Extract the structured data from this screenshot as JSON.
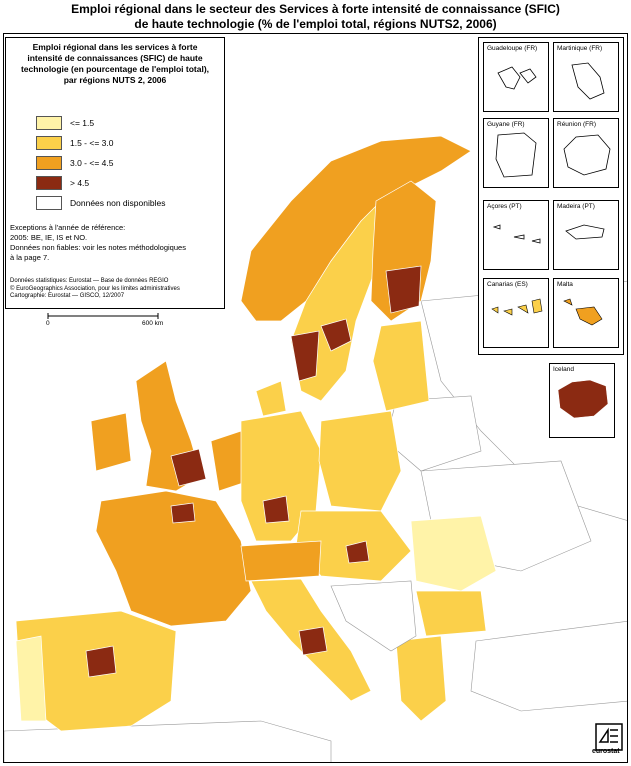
{
  "title": {
    "line1": "Emploi régional dans le secteur des Services à forte intensité de connaissance (SFIC)",
    "line2": "de haute technologie (% de l'emploi total, régions NUTS2, 2006)"
  },
  "legend": {
    "title_line1": "Emploi régional dans les services à forte",
    "title_line2": "intensité de connaissances (SFIC) de haute",
    "title_line3": "technologie (en pourcentage de l'emploi total),",
    "title_line4": "par régions NUTS 2, 2006",
    "classes": [
      {
        "label": "<= 1.5",
        "color": "#fff3a8"
      },
      {
        "label": "1.5 - <= 3.0",
        "color": "#fbd04a"
      },
      {
        "label": "3.0 - <= 4.5",
        "color": "#f0a020"
      },
      {
        "label": "> 4.5",
        "color": "#8b2a12"
      },
      {
        "label": "Données non disponibles",
        "color": "#ffffff"
      }
    ],
    "notes": {
      "line1": "Exceptions à l'année de référence:",
      "line2": "2005: BE, IE, IS et NO.",
      "line3": "Données non fiables: voir les notes méthodologiques",
      "line4": "à la page 7."
    },
    "credits": {
      "line1": "Données statistiques: Eurostat — Base de données REGIO",
      "line2": "© EuroGeographics Association, pour les limites administratives",
      "line3": "Cartographie: Eurostat — GISCO, 12/2007"
    },
    "scale": {
      "start": "0",
      "end": "600 km"
    }
  },
  "insets": [
    {
      "label": "Guadeloupe (FR)",
      "scale_start": "0",
      "scale_end": "25"
    },
    {
      "label": "Martinique (FR)",
      "scale_start": "0",
      "scale_end": "20"
    },
    {
      "label": "Guyane (FR)",
      "scale_start": "0",
      "scale_end": "100"
    },
    {
      "label": "Réunion (FR)",
      "scale_start": "0",
      "scale_end": "20"
    },
    {
      "label": "Açores (PT)",
      "scale_start": "0",
      "scale_end": "100"
    },
    {
      "label": "Madeira (PT)",
      "scale_start": "0",
      "scale_end": "20"
    },
    {
      "label": "Canarias (ES)",
      "scale_start": "0",
      "scale_end": "100"
    },
    {
      "label": "Malta",
      "scale_start": "0",
      "scale_end": "10"
    }
  ],
  "iceland": {
    "label": "Iceland",
    "scale_start": "0",
    "scale_end": "100"
  },
  "logo": {
    "text": "eurostat"
  }
}
